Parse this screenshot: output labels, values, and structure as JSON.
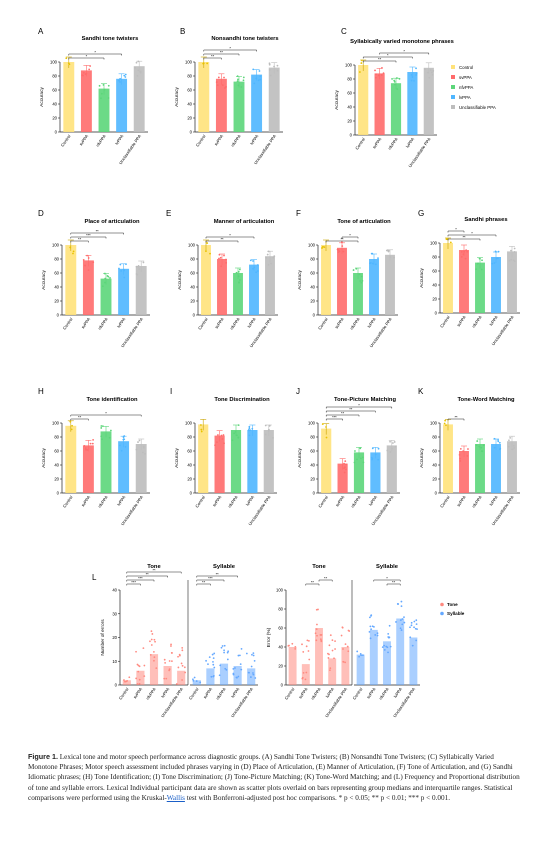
{
  "colors": {
    "Control": "#ffe27a",
    "svPPA": "#ff6b6b",
    "nfvPPA": "#5cd67a",
    "lvPPA": "#4fb6ff",
    "Unclassifiable PPA": "#bdbdbd",
    "Tone": "#ff8a80",
    "Syllable": "#64a8ff"
  },
  "legend_main": [
    "Control",
    "svPPA",
    "nfvPPA",
    "lvPPA",
    "Unclassifiable PPA"
  ],
  "groups": [
    "Control",
    "svPPA",
    "nfvPPA",
    "lvPPA",
    "Unclassifiable PPA"
  ],
  "acc_axis": {
    "ylabel": "Accuracy",
    "ticks": [
      "100",
      "80",
      "60",
      "40",
      "20",
      "0"
    ],
    "ylim": [
      0,
      100
    ]
  },
  "chart_data": [
    {
      "type": "bar",
      "letter": "A",
      "title": "Sandhi tone twisters",
      "values": [
        100,
        88,
        62,
        76,
        94
      ]
    },
    {
      "type": "bar",
      "letter": "B",
      "title": "Nonsandhi tone twisters",
      "values": [
        100,
        76,
        72,
        82,
        92
      ]
    },
    {
      "type": "bar",
      "letter": "C",
      "title": "Syllabically varied monotone phrases",
      "values": [
        100,
        88,
        74,
        90,
        96
      ]
    },
    {
      "type": "bar",
      "letter": "D",
      "title": "Place of articulation",
      "values": [
        100,
        78,
        52,
        66,
        70
      ]
    },
    {
      "type": "bar",
      "letter": "E",
      "title": "Manner of articulation",
      "values": [
        100,
        80,
        60,
        72,
        84
      ]
    },
    {
      "type": "bar",
      "letter": "F",
      "title": "Tone of articulation",
      "values": [
        100,
        96,
        60,
        80,
        86
      ]
    },
    {
      "type": "bar",
      "letter": "G",
      "title": "Sandhi phrases",
      "values": [
        100,
        90,
        72,
        80,
        88
      ]
    },
    {
      "type": "bar",
      "letter": "H",
      "title": "Tone identification",
      "values": [
        96,
        68,
        88,
        74,
        70
      ]
    },
    {
      "type": "bar",
      "letter": "I",
      "title": "Tone Discrimination",
      "values": [
        98,
        82,
        90,
        90,
        90
      ]
    },
    {
      "type": "bar",
      "letter": "J",
      "title": "Tone-Picture Matching",
      "values": [
        92,
        42,
        58,
        58,
        68
      ]
    },
    {
      "type": "bar",
      "letter": "K",
      "title": "Tone-Word Matching",
      "values": [
        98,
        60,
        70,
        70,
        74
      ]
    },
    {
      "type": "bar",
      "letter": "L",
      "title": "Tone",
      "ylabel": "Number of errors",
      "ticks": [
        "40",
        "30",
        "20",
        "10",
        "0"
      ],
      "ylim": [
        0,
        40
      ],
      "values": [
        2,
        6,
        13,
        8,
        6
      ],
      "series": [
        {
          "name": "Tone"
        }
      ]
    },
    {
      "type": "bar",
      "title": "Syllable",
      "ylim": [
        0,
        40
      ],
      "values": [
        2,
        7,
        9,
        8,
        7
      ],
      "series": [
        {
          "name": "Syllable"
        }
      ]
    },
    {
      "type": "bar",
      "title": "Tone",
      "ylabel": "Error (%)",
      "ticks": [
        "100",
        "80",
        "60",
        "40",
        "20",
        "0"
      ],
      "ylim": [
        0,
        100
      ],
      "values": [
        40,
        22,
        60,
        28,
        40
      ],
      "series": [
        {
          "name": "Tone"
        }
      ]
    },
    {
      "type": "bar",
      "title": "Syllable",
      "ylim": [
        0,
        100
      ],
      "values": [
        32,
        58,
        46,
        70,
        50
      ],
      "series": [
        {
          "name": "Syllable"
        }
      ]
    }
  ],
  "legend_L": [
    "Tone",
    "Syllable"
  ],
  "sig": [
    "*",
    "**",
    "***"
  ],
  "caption": {
    "label": "Figure 1.",
    "text_before": " Lexical tone and motor speech performance across diagnostic groups. (A) Sandhi Tone Twisters; (B) Nonsandhi Tone Twisters; (C) Syllabically Varied Monotone Phrases; Motor speech assessment included phrases varying in (D) Place of Articulation, (E) Manner of Articulation, (F) Tone of Articulation, and (G) Sandhi Idiomatic phrases; (H) Tone Identification; (I) Tone Discrimination; (J) Tone-Picture Matching; (K) Tone-Word Matching; and (L) Frequency and Proportional distribution of tone and syllable errors. Lexical Individual participant data are shown as scatter plots overlaid on bars representing group medians and interquartile ranges. Statistical comparisons were performed using the Kruskal-",
    "link": "Wallis",
    "text_after": " test with Bonferroni-adjusted post hoc comparisons. * p < 0.05; ** p < 0.01; *** p < 0.001."
  }
}
